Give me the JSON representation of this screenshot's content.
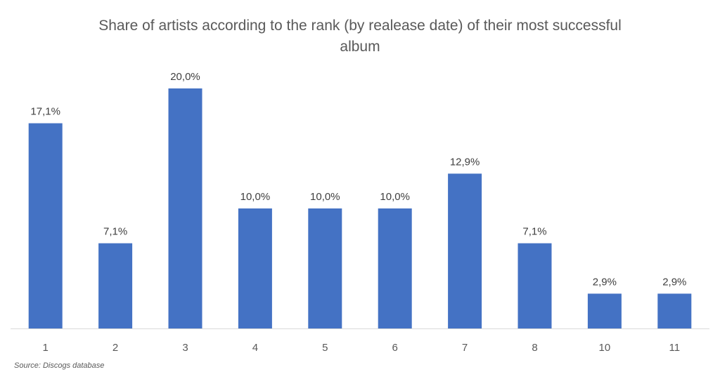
{
  "chart_data": {
    "type": "bar",
    "title_lines": [
      "Share of artists according to the rank (by realease date) of their most successful",
      "album"
    ],
    "categories": [
      "1",
      "2",
      "3",
      "4",
      "5",
      "6",
      "7",
      "8",
      "10",
      "11"
    ],
    "values": [
      17.1,
      7.1,
      20.0,
      10.0,
      10.0,
      10.0,
      12.9,
      7.1,
      2.9,
      2.9
    ],
    "data_labels": [
      "17,1%",
      "7,1%",
      "20,0%",
      "10,0%",
      "10,0%",
      "10,0%",
      "12,9%",
      "7,1%",
      "2,9%",
      "2,9%"
    ],
    "unit": "%",
    "xlabel": "",
    "ylabel": "",
    "ylim": [
      0,
      20
    ],
    "grid": false,
    "legend": false,
    "bar_color": "#4472C4",
    "source": "Source: Discogs database"
  }
}
